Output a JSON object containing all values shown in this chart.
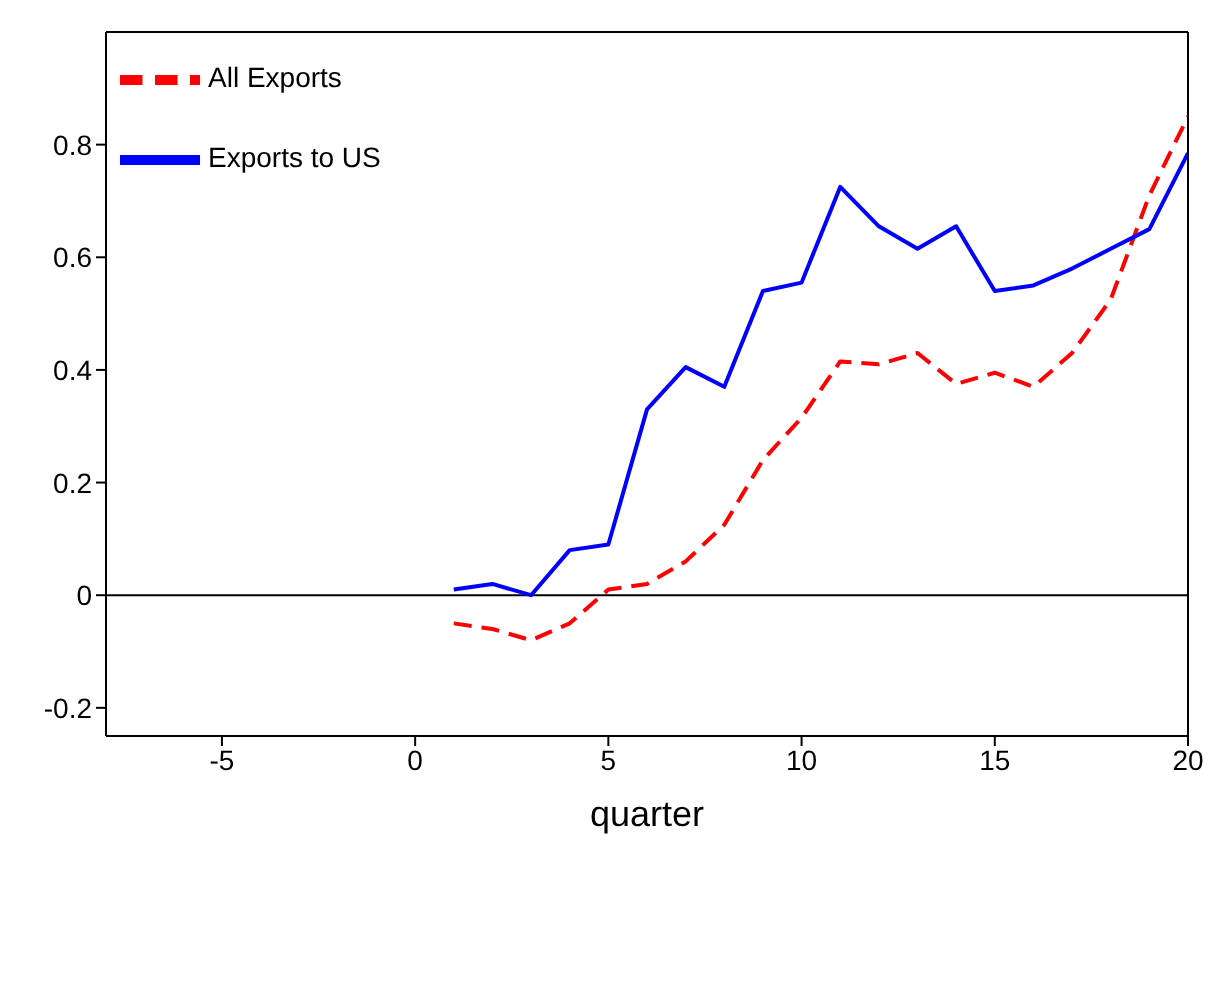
{
  "chart_data": {
    "type": "line",
    "xlabel": "quarter",
    "x": [
      1,
      2,
      3,
      4,
      5,
      6,
      7,
      8,
      9,
      10,
      11,
      12,
      13,
      14,
      15,
      16,
      17,
      18,
      19,
      20
    ],
    "series": [
      {
        "name": "All Exports",
        "color": "#ff0000",
        "line_style": "dashed",
        "values": [
          -0.05,
          -0.06,
          -0.08,
          -0.05,
          0.01,
          0.02,
          0.06,
          0.125,
          0.24,
          0.315,
          0.415,
          0.41,
          0.43,
          0.375,
          0.395,
          0.37,
          0.43,
          0.525,
          0.71,
          0.85
        ]
      },
      {
        "name": "Exports to US",
        "color": "#0000ff",
        "line_style": "solid",
        "values": [
          0.01,
          0.02,
          0.0,
          0.08,
          0.09,
          0.33,
          0.405,
          0.37,
          0.54,
          0.555,
          0.725,
          0.655,
          0.615,
          0.655,
          0.54,
          0.55,
          0.58,
          0.615,
          0.65,
          0.785
        ]
      }
    ],
    "xlim": [
      -8,
      20
    ],
    "xticks": [
      -5,
      0,
      5,
      10,
      15,
      20
    ],
    "ylim": [
      -0.25,
      1.0
    ],
    "yticks": [
      -0.2,
      0,
      0.2,
      0.4,
      0.6,
      0.8
    ],
    "ref_lines": [
      {
        "axis": "y",
        "value": 0,
        "color": "#000000"
      }
    ],
    "grid": false,
    "legend": "top left",
    "marker": "none"
  }
}
